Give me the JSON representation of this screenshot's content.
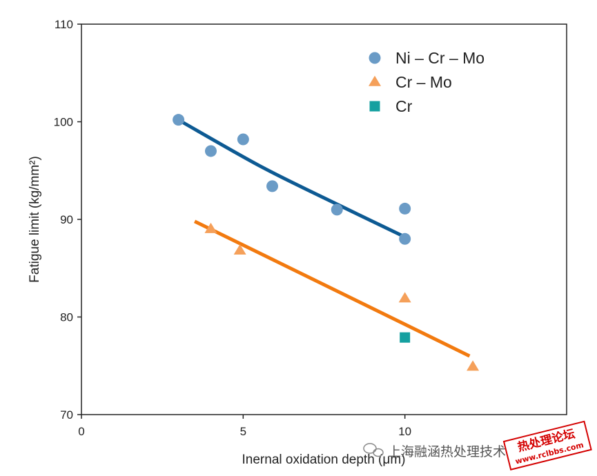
{
  "chart_data": {
    "type": "scatter",
    "title": "",
    "xlabel": "Inernal oxidation depth (μm)",
    "ylabel": "Fatigue limit (kg/mm²)",
    "xlim": [
      0,
      15
    ],
    "ylim": [
      70,
      110
    ],
    "x_ticks": [
      0,
      5,
      10
    ],
    "y_ticks": [
      70,
      80,
      90,
      100,
      110
    ],
    "grid": false,
    "legend_position": "top-right",
    "series": [
      {
        "name": "Ni – Cr – Mo",
        "marker": "circle",
        "color": "#6a9bc6",
        "points": [
          {
            "x": 3.0,
            "y": 100.2
          },
          {
            "x": 4.0,
            "y": 97.0
          },
          {
            "x": 5.0,
            "y": 98.2
          },
          {
            "x": 5.9,
            "y": 93.4
          },
          {
            "x": 7.9,
            "y": 91.0
          },
          {
            "x": 10.0,
            "y": 91.1
          },
          {
            "x": 10.0,
            "y": 88.0
          }
        ],
        "fit": {
          "color": "#0d5a93",
          "points": [
            {
              "x": 3.1,
              "y": 100.0
            },
            {
              "x": 5.5,
              "y": 95.5
            },
            {
              "x": 7.5,
              "y": 92.2
            },
            {
              "x": 10.0,
              "y": 88.2
            }
          ]
        }
      },
      {
        "name": "Cr – Mo",
        "marker": "triangle",
        "color": "#f5a05a",
        "points": [
          {
            "x": 4.0,
            "y": 89.0
          },
          {
            "x": 4.9,
            "y": 86.8
          },
          {
            "x": 10.0,
            "y": 81.9
          },
          {
            "x": 12.1,
            "y": 74.9
          }
        ],
        "fit": {
          "color": "#f27a0f",
          "points": [
            {
              "x": 3.5,
              "y": 89.8
            },
            {
              "x": 12.0,
              "y": 76.0
            }
          ]
        }
      },
      {
        "name": "Cr",
        "marker": "square",
        "color": "#15a0a0",
        "points": [
          {
            "x": 10.0,
            "y": 77.9
          }
        ]
      }
    ]
  },
  "watermark": {
    "text": "上海融涵热处理技术有限公司",
    "stamp_line1": "热处理论坛",
    "stamp_line2": "www.rclbbs.com"
  }
}
